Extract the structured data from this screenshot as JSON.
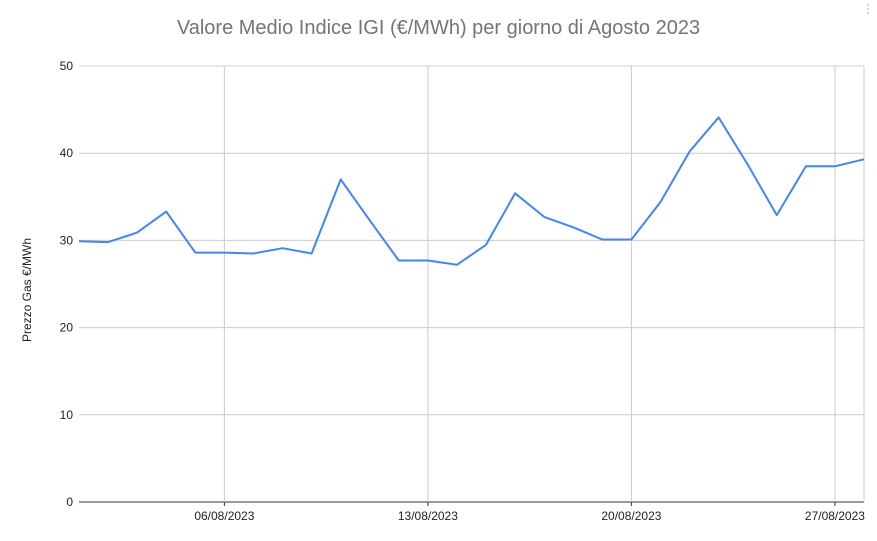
{
  "chart_data": {
    "type": "line",
    "title": "Valore Medio Indice IGI (€/MWh) per giorno di Agosto 2023",
    "xlabel": "",
    "ylabel": "Prezzo Gas €/MWh",
    "ylim": [
      0,
      50
    ],
    "yticks": [
      "0",
      "10",
      "20",
      "30",
      "40",
      "50"
    ],
    "xtick_labels": [
      "06/08/2023",
      "13/08/2023",
      "20/08/2023",
      "27/08/2023"
    ],
    "xtick_dates": [
      "2023-08-06",
      "2023-08-13",
      "2023-08-20",
      "2023-08-27"
    ],
    "xlim": [
      "2023-08-01",
      "2023-08-28"
    ],
    "grid": true,
    "line_color": "#4285f4",
    "series": [
      {
        "dates": [
          "2023-08-01",
          "2023-08-02",
          "2023-08-03",
          "2023-08-04",
          "2023-08-05",
          "2023-08-06",
          "2023-08-07",
          "2023-08-08",
          "2023-08-09",
          "2023-08-10",
          "2023-08-11",
          "2023-08-12",
          "2023-08-13",
          "2023-08-14",
          "2023-08-15",
          "2023-08-16",
          "2023-08-17",
          "2023-08-18",
          "2023-08-19",
          "2023-08-20",
          "2023-08-21",
          "2023-08-22",
          "2023-08-23",
          "2023-08-24",
          "2023-08-25",
          "2023-08-26",
          "2023-08-27",
          "2023-08-28"
        ],
        "values": [
          29.9,
          29.8,
          30.9,
          33.3,
          28.6,
          28.6,
          28.5,
          29.1,
          28.5,
          37.0,
          32.3,
          27.7,
          27.7,
          27.2,
          29.5,
          35.4,
          32.7,
          31.5,
          30.1,
          30.1,
          34.4,
          40.2,
          44.1,
          38.7,
          32.9,
          38.5,
          38.5,
          39.3
        ]
      }
    ]
  }
}
